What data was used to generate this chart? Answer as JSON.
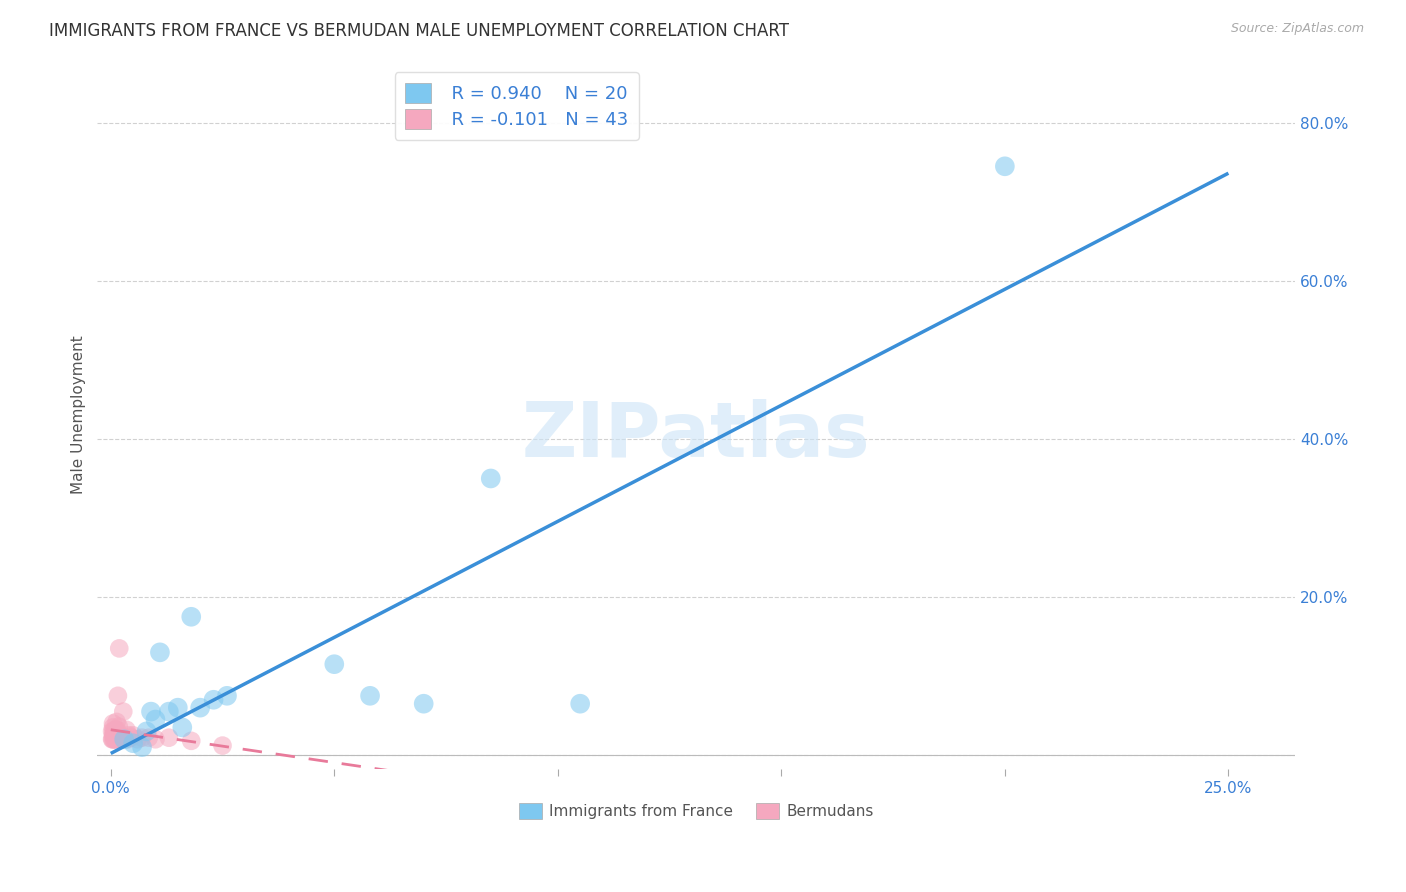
{
  "title": "IMMIGRANTS FROM FRANCE VS BERMUDAN MALE UNEMPLOYMENT CORRELATION CHART",
  "source": "Source: ZipAtlas.com",
  "ylabel": "Male Unemployment",
  "x_tick_positions": [
    0,
    5,
    10,
    15,
    20,
    25
  ],
  "x_tick_labels": [
    "0.0%",
    "",
    "",
    "",
    "",
    "25.0%"
  ],
  "y_tick_positions": [
    0.0,
    0.2,
    0.4,
    0.6,
    0.8
  ],
  "y_tick_labels": [
    "",
    "20.0%",
    "40.0%",
    "60.0%",
    "80.0%"
  ],
  "xlim": [
    -0.3,
    26.5
  ],
  "ylim": [
    -0.018,
    0.88
  ],
  "blue_color": "#7ec8f0",
  "pink_color": "#f5a8bf",
  "blue_line_color": "#3a8fd8",
  "pink_line_color": "#e87a9a",
  "legend_label_blue": "Immigrants from France",
  "legend_label_pink": "Bermudans",
  "watermark": "ZIPatlas",
  "blue_x": [
    0.3,
    0.5,
    0.7,
    0.8,
    0.9,
    1.0,
    1.1,
    1.3,
    1.5,
    1.6,
    1.8,
    2.0,
    2.3,
    2.6,
    5.0,
    5.8,
    7.0,
    8.5,
    10.5,
    20.0
  ],
  "blue_y": [
    0.02,
    0.015,
    0.01,
    0.03,
    0.055,
    0.045,
    0.13,
    0.055,
    0.06,
    0.035,
    0.175,
    0.06,
    0.07,
    0.075,
    0.115,
    0.075,
    0.065,
    0.35,
    0.065,
    0.745
  ],
  "pink_x": [
    0.03,
    0.03,
    0.04,
    0.05,
    0.05,
    0.05,
    0.06,
    0.06,
    0.07,
    0.08,
    0.08,
    0.09,
    0.1,
    0.1,
    0.1,
    0.12,
    0.12,
    0.13,
    0.13,
    0.13,
    0.14,
    0.14,
    0.15,
    0.16,
    0.18,
    0.18,
    0.19,
    0.22,
    0.25,
    0.28,
    0.32,
    0.35,
    0.38,
    0.4,
    0.45,
    0.5,
    0.6,
    0.7,
    0.85,
    1.0,
    1.3,
    1.8,
    2.5
  ],
  "pink_y": [
    0.02,
    0.03,
    0.02,
    0.025,
    0.035,
    0.04,
    0.02,
    0.03,
    0.025,
    0.02,
    0.025,
    0.025,
    0.02,
    0.025,
    0.032,
    0.02,
    0.025,
    0.022,
    0.03,
    0.042,
    0.022,
    0.032,
    0.025,
    0.075,
    0.022,
    0.036,
    0.135,
    0.02,
    0.022,
    0.055,
    0.022,
    0.032,
    0.02,
    0.025,
    0.022,
    0.025,
    0.02,
    0.022,
    0.022,
    0.02,
    0.022,
    0.018,
    0.012
  ],
  "dot_size_blue": 200,
  "dot_size_pink": 180,
  "dot_alpha": 0.55,
  "blue_line_start_x": 0.0,
  "blue_line_end_x": 25.0,
  "pink_line_start_x": 0.0,
  "pink_line_end_x": 25.0
}
